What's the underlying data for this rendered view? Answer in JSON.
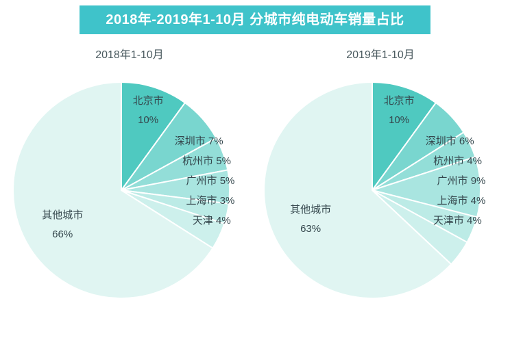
{
  "title": "2018年-2019年1-10月 分城市纯电动车销量占比",
  "colors": {
    "banner": "#3fc3ca",
    "label_text": "#35474d",
    "subtitle_text": "#4a5a5f",
    "background": "#ffffff"
  },
  "chart_data": [
    {
      "type": "pie",
      "title": "2018年1-10月",
      "labels": [
        "北京市",
        "深圳市",
        "杭州市",
        "广州市",
        "上海市",
        "天津",
        "其他城市"
      ],
      "values": [
        10,
        7,
        5,
        5,
        3,
        4,
        66
      ],
      "unit": "%",
      "slice_colors": [
        "#4fc9c0",
        "#79d6cf",
        "#93ded8",
        "#a9e5e0",
        "#bcebe6",
        "#cdf0ec",
        "#e0f5f2"
      ],
      "start_angle": "top",
      "direction": "clockwise",
      "legend": "none",
      "labels_on_chart": true
    },
    {
      "type": "pie",
      "title": "2019年1-10月",
      "labels": [
        "北京市",
        "深圳市",
        "杭州市",
        "广州市",
        "上海市",
        "天津市",
        "其他城市"
      ],
      "values": [
        10,
        6,
        4,
        9,
        4,
        4,
        63
      ],
      "unit": "%",
      "slice_colors": [
        "#4fc9c0",
        "#79d6cf",
        "#93ded8",
        "#a9e5e0",
        "#bcebe6",
        "#cdf0ec",
        "#e0f5f2"
      ],
      "start_angle": "top",
      "direction": "clockwise",
      "legend": "none",
      "labels_on_chart": true
    }
  ]
}
